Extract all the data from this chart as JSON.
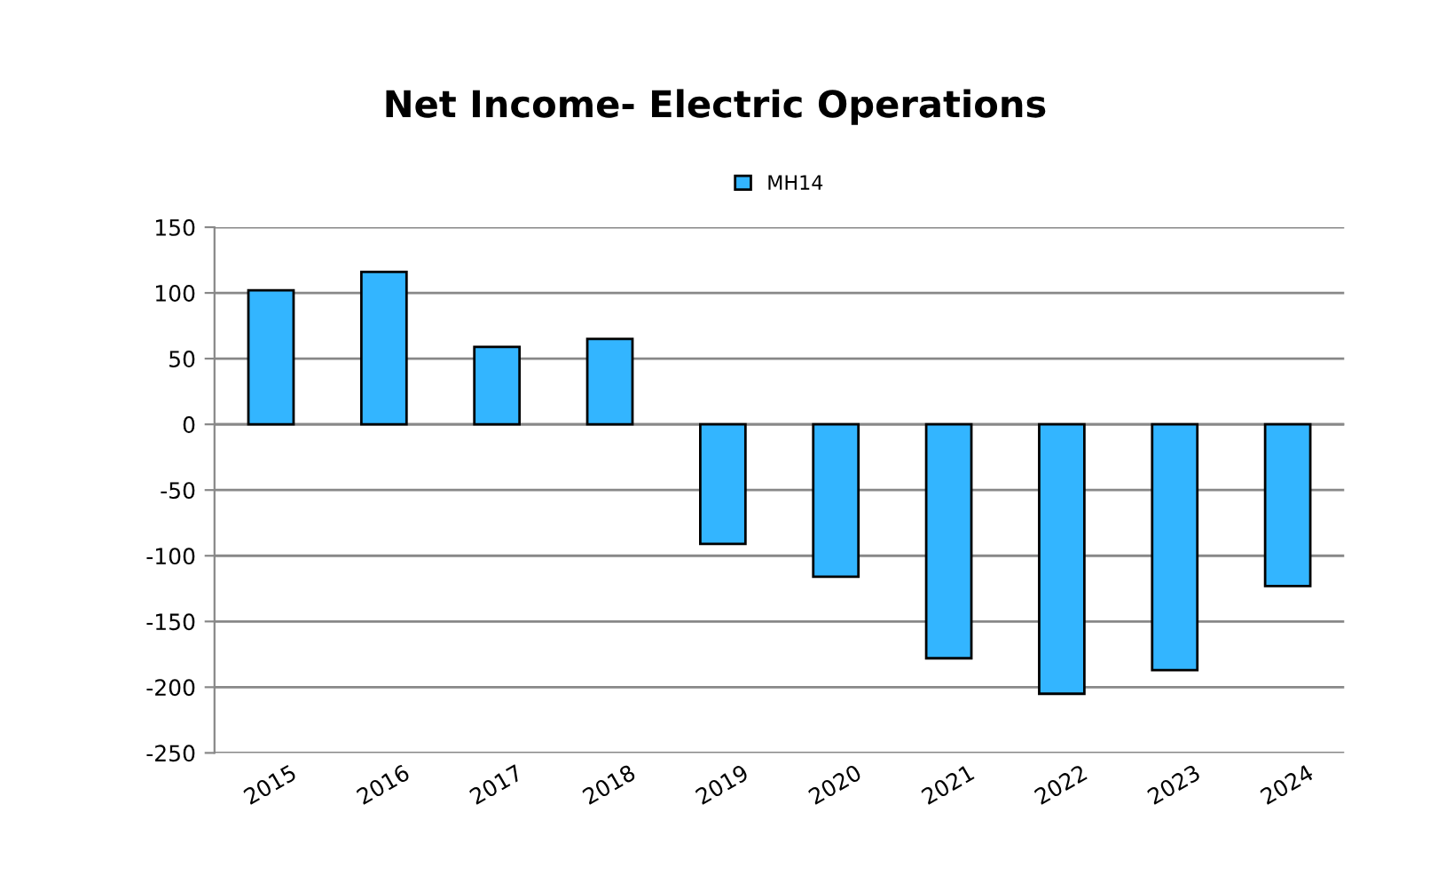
{
  "chart_data": {
    "type": "bar",
    "title": "Net Income- Electric Operations",
    "categories": [
      "2015",
      "2016",
      "2017",
      "2018",
      "2019",
      "2020",
      "2021",
      "2022",
      "2023",
      "2024"
    ],
    "series": [
      {
        "name": "MH14",
        "color": "#33b5ff",
        "values": [
          102,
          116,
          59,
          65,
          -91,
          -116,
          -178,
          -205,
          -187,
          -123
        ]
      }
    ],
    "ylim": [
      -250,
      150
    ],
    "yticks": [
      -250,
      -200,
      -150,
      -100,
      -50,
      0,
      50,
      100,
      150
    ],
    "grid": "y",
    "legend": "top"
  }
}
